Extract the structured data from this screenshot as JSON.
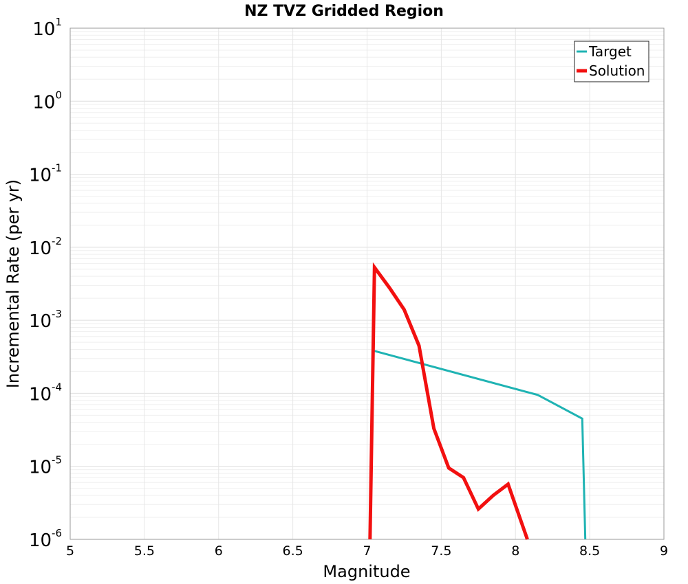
{
  "chart_data": {
    "type": "line",
    "title": "NZ TVZ Gridded Region",
    "xlabel": "Magnitude",
    "ylabel": "Incremental Rate (per yr)",
    "xlim": [
      5,
      9
    ],
    "ylim": [
      1e-06,
      10
    ],
    "yscale": "log",
    "grid": true,
    "legend_position": "top-right",
    "x_ticks": [
      "5",
      "5.5",
      "6",
      "6.5",
      "7",
      "7.5",
      "8",
      "8.5",
      "9"
    ],
    "y_ticks": [
      {
        "base": "10",
        "exp": "1",
        "value": 10
      },
      {
        "base": "10",
        "exp": "0",
        "value": 1
      },
      {
        "base": "10",
        "exp": "-1",
        "value": 0.1
      },
      {
        "base": "10",
        "exp": "-2",
        "value": 0.01
      },
      {
        "base": "10",
        "exp": "-3",
        "value": 0.001
      },
      {
        "base": "10",
        "exp": "-4",
        "value": 0.0001
      },
      {
        "base": "10",
        "exp": "-5",
        "value": 1e-05
      },
      {
        "base": "10",
        "exp": "-6",
        "value": 1e-06
      }
    ],
    "series": [
      {
        "name": "Target",
        "color": "#1fb3b3",
        "x": [
          7.05,
          8.15,
          8.45,
          8.47
        ],
        "y": [
          0.00038,
          9.5e-05,
          4.5e-05,
          1e-06
        ]
      },
      {
        "name": "Solution",
        "color": "#f21010",
        "x": [
          7.02,
          7.05,
          7.15,
          7.25,
          7.35,
          7.45,
          7.55,
          7.65,
          7.75,
          7.85,
          7.95,
          8.05,
          8.08
        ],
        "y": [
          1e-06,
          0.0053,
          0.0028,
          0.0014,
          0.00045,
          3.3e-05,
          9.5e-06,
          7e-06,
          2.6e-06,
          4e-06,
          5.7e-06,
          1.5e-06,
          1e-06
        ]
      }
    ]
  }
}
